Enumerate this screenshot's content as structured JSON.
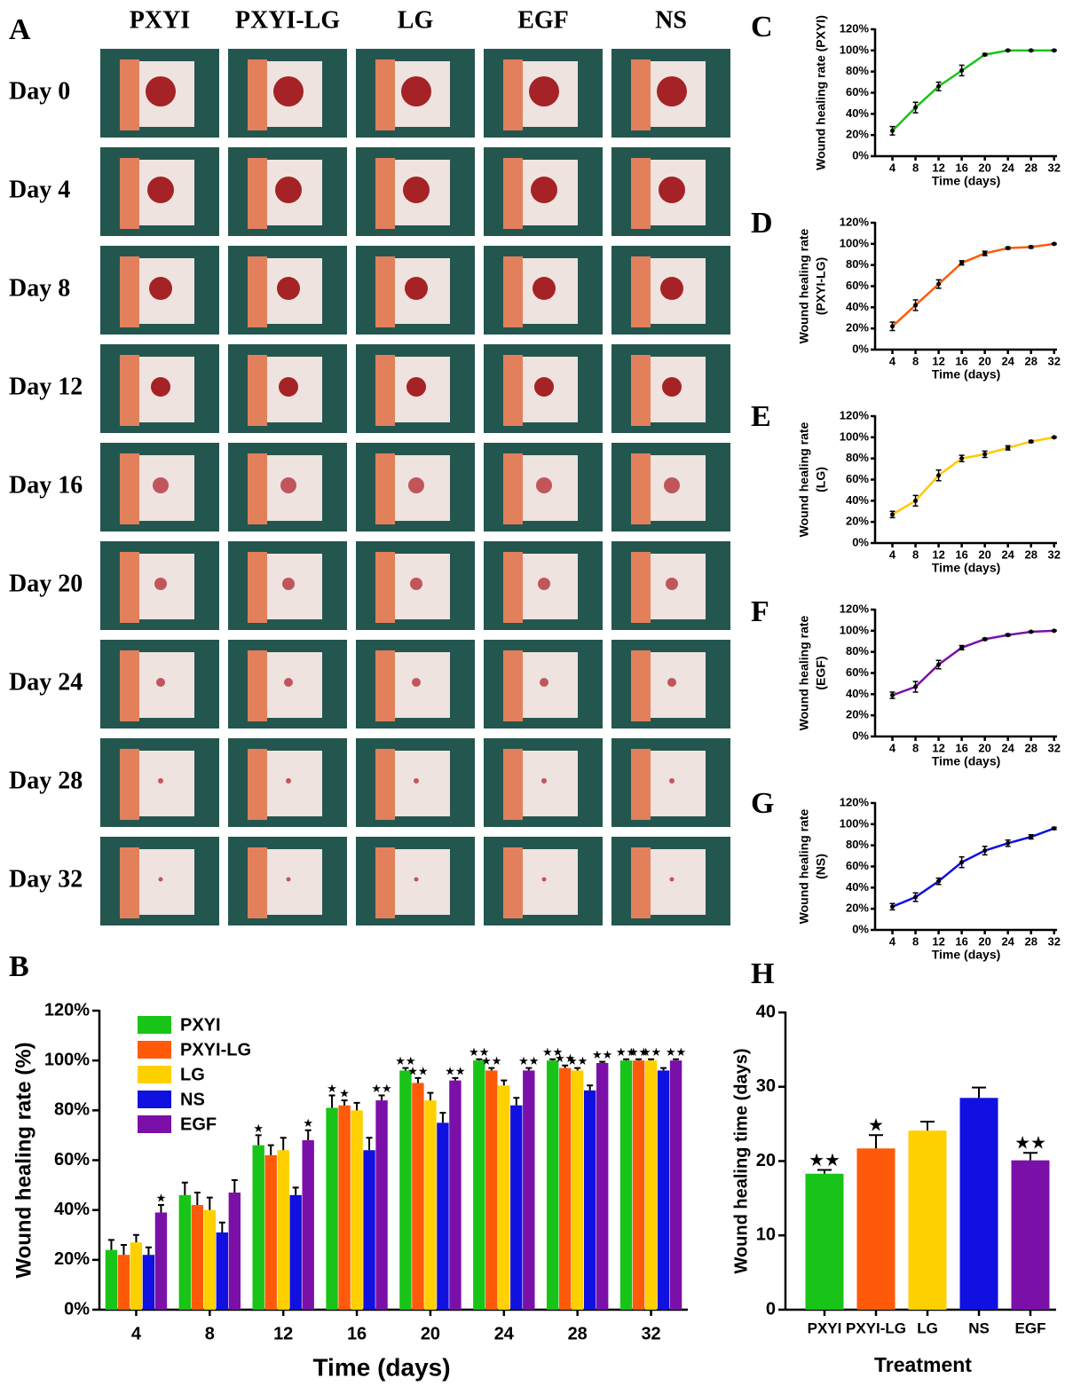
{
  "photo_grid": {
    "panel": "A",
    "columns": [
      "PXYI",
      "PXYI-LG",
      "LG",
      "EGF",
      "NS"
    ],
    "rows": [
      "Day 0",
      "Day 4",
      "Day 8",
      "Day 12",
      "Day 16",
      "Day 20",
      "Day 24",
      "Day 28",
      "Day 32"
    ]
  },
  "chart_data": [
    {
      "type": "bar",
      "panel": "B",
      "xlabel": "Time (days)",
      "ylabel": "Wound healing rate (%)",
      "categories": [
        "4",
        "8",
        "12",
        "16",
        "20",
        "24",
        "28",
        "32"
      ],
      "ylim": [
        0,
        120
      ],
      "yticks": [
        {
          "value": 0,
          "label": "0%"
        },
        {
          "value": 20,
          "label": "20%"
        },
        {
          "value": 40,
          "label": "40%"
        },
        {
          "value": 60,
          "label": "60%"
        },
        {
          "value": 80,
          "label": "80%"
        },
        {
          "value": 100,
          "label": "100%"
        },
        {
          "value": 120,
          "label": "120%"
        }
      ],
      "legend": "top-left",
      "series": [
        {
          "name": "PXYI",
          "color": "#18c418",
          "values": [
            24,
            46,
            66,
            81,
            96,
            100,
            100,
            100
          ],
          "errors": [
            4,
            5,
            4,
            5,
            1,
            0.5,
            0.5,
            0.5
          ],
          "significance": [
            null,
            null,
            "★",
            "★",
            "★★",
            "★★",
            "★★",
            "★★"
          ]
        },
        {
          "name": "PXYI-LG",
          "color": "#ff5a0a",
          "values": [
            22,
            42,
            62,
            82,
            91,
            96,
            97,
            100
          ],
          "errors": [
            4,
            5,
            4,
            2,
            2,
            1,
            1,
            0.5
          ],
          "significance": [
            null,
            null,
            null,
            "★",
            "★★",
            "★★",
            "★★",
            "★★"
          ]
        },
        {
          "name": "LG",
          "color": "#ffd000",
          "values": [
            27,
            40,
            64,
            80,
            84,
            90,
            96,
            100
          ],
          "errors": [
            3,
            5,
            5,
            3,
            3,
            2,
            1,
            0.5
          ],
          "significance": [
            null,
            null,
            null,
            null,
            null,
            null,
            "★★",
            "★★"
          ]
        },
        {
          "name": "NS",
          "color": "#1010e0",
          "values": [
            22,
            31,
            46,
            64,
            75,
            82,
            88,
            96
          ],
          "errors": [
            3,
            4,
            3,
            5,
            4,
            3,
            2,
            1
          ],
          "significance": [
            null,
            null,
            null,
            null,
            null,
            null,
            null,
            null
          ]
        },
        {
          "name": "EGF",
          "color": "#7a10a8",
          "values": [
            39,
            47,
            68,
            84,
            92,
            96,
            99,
            100
          ],
          "errors": [
            3,
            5,
            4,
            2,
            1,
            1,
            0.5,
            0.5
          ],
          "significance": [
            "★",
            null,
            "★",
            "★★",
            "★★",
            "★★",
            "★★",
            "★★"
          ]
        }
      ]
    },
    {
      "type": "line",
      "panel": "C",
      "xlabel": "Time (days)",
      "ylabel": [
        "Wound healing rate (PXYI)"
      ],
      "color": "#18c418",
      "x": [
        4,
        8,
        12,
        16,
        20,
        24,
        28,
        32
      ],
      "values": [
        24,
        46,
        66,
        81,
        96,
        100,
        100,
        100
      ],
      "errors": [
        4,
        5,
        4,
        5,
        1,
        0.5,
        0.5,
        0.5
      ],
      "xlim": [
        1,
        32.5
      ],
      "xticks": [
        4,
        8,
        12,
        16,
        20,
        24,
        28,
        32
      ],
      "ylim": [
        0,
        120
      ],
      "yticks": [
        {
          "value": 0,
          "label": "0%"
        },
        {
          "value": 20,
          "label": "20%"
        },
        {
          "value": 40,
          "label": "40%"
        },
        {
          "value": 60,
          "label": "60%"
        },
        {
          "value": 80,
          "label": "80%"
        },
        {
          "value": 100,
          "label": "100%"
        },
        {
          "value": 120,
          "label": "120%"
        }
      ]
    },
    {
      "type": "line",
      "panel": "D",
      "xlabel": "Time (days)",
      "ylabel": [
        "Wound healing rate",
        "(PXYI-LG)"
      ],
      "color": "#ff5a0a",
      "x": [
        4,
        8,
        12,
        16,
        20,
        24,
        28,
        32
      ],
      "values": [
        22,
        42,
        62,
        82,
        91,
        96,
        97,
        100
      ],
      "errors": [
        4,
        5,
        4,
        2,
        2,
        1,
        1,
        0.5
      ],
      "xlim": [
        1,
        32.5
      ],
      "xticks": [
        4,
        8,
        12,
        16,
        20,
        24,
        28,
        32
      ],
      "ylim": [
        0,
        120
      ],
      "yticks": [
        {
          "value": 0,
          "label": "0%"
        },
        {
          "value": 20,
          "label": "20%"
        },
        {
          "value": 40,
          "label": "40%"
        },
        {
          "value": 60,
          "label": "60%"
        },
        {
          "value": 80,
          "label": "80%"
        },
        {
          "value": 100,
          "label": "100%"
        },
        {
          "value": 120,
          "label": "120%"
        }
      ]
    },
    {
      "type": "line",
      "panel": "E",
      "xlabel": "Time (days)",
      "ylabel": [
        "Wound healing rate",
        "(LG)"
      ],
      "color": "#ffc800",
      "x": [
        4,
        8,
        12,
        16,
        20,
        24,
        28,
        32
      ],
      "values": [
        27,
        40,
        64,
        80,
        84,
        90,
        96,
        100
      ],
      "errors": [
        3,
        5,
        5,
        3,
        3,
        2,
        1,
        0.5
      ],
      "xlim": [
        1,
        32.5
      ],
      "xticks": [
        4,
        8,
        12,
        16,
        20,
        24,
        28,
        32
      ],
      "ylim": [
        0,
        120
      ],
      "yticks": [
        {
          "value": 0,
          "label": "0%"
        },
        {
          "value": 20,
          "label": "20%"
        },
        {
          "value": 40,
          "label": "40%"
        },
        {
          "value": 60,
          "label": "60%"
        },
        {
          "value": 80,
          "label": "80%"
        },
        {
          "value": 100,
          "label": "100%"
        },
        {
          "value": 120,
          "label": "120%"
        }
      ]
    },
    {
      "type": "line",
      "panel": "F",
      "xlabel": "Time (days)",
      "ylabel": [
        "Wound healing rate",
        "(EGF)"
      ],
      "color": "#7a10a8",
      "x": [
        4,
        8,
        12,
        16,
        20,
        24,
        28,
        32
      ],
      "values": [
        39,
        47,
        68,
        84,
        92,
        96,
        99,
        100
      ],
      "errors": [
        3,
        5,
        4,
        2,
        1,
        1,
        0.5,
        0.5
      ],
      "xlim": [
        1,
        32.5
      ],
      "xticks": [
        4,
        8,
        12,
        16,
        20,
        24,
        28,
        32
      ],
      "ylim": [
        0,
        120
      ],
      "yticks": [
        {
          "value": 0,
          "label": "0%"
        },
        {
          "value": 20,
          "label": "20%"
        },
        {
          "value": 40,
          "label": "40%"
        },
        {
          "value": 60,
          "label": "60%"
        },
        {
          "value": 80,
          "label": "80%"
        },
        {
          "value": 100,
          "label": "100%"
        },
        {
          "value": 120,
          "label": "120%"
        }
      ]
    },
    {
      "type": "line",
      "panel": "G",
      "xlabel": "Time (days)",
      "ylabel": [
        "Wound healing rate",
        "(NS)"
      ],
      "color": "#1010e0",
      "x": [
        4,
        8,
        12,
        16,
        20,
        24,
        28,
        32
      ],
      "values": [
        22,
        31,
        46,
        64,
        75,
        82,
        88,
        96
      ],
      "errors": [
        3,
        4,
        3,
        5,
        4,
        3,
        2,
        1
      ],
      "xlim": [
        1,
        32.5
      ],
      "xticks": [
        4,
        8,
        12,
        16,
        20,
        24,
        28,
        32
      ],
      "ylim": [
        0,
        120
      ],
      "yticks": [
        {
          "value": 0,
          "label": "0%"
        },
        {
          "value": 20,
          "label": "20%"
        },
        {
          "value": 40,
          "label": "40%"
        },
        {
          "value": 60,
          "label": "60%"
        },
        {
          "value": 80,
          "label": "80%"
        },
        {
          "value": 100,
          "label": "100%"
        },
        {
          "value": 120,
          "label": "120%"
        }
      ]
    },
    {
      "type": "bar",
      "panel": "H",
      "xlabel": "Treatment",
      "ylabel": "Wound healing time (days)",
      "categories": [
        "PXYI",
        "PXYI-LG",
        "LG",
        "NS",
        "EGF"
      ],
      "values": [
        18.3,
        21.7,
        24.1,
        28.5,
        20.1
      ],
      "errors": [
        0.5,
        1.8,
        1.2,
        1.4,
        1.0
      ],
      "colors": [
        "#18c418",
        "#ff5a0a",
        "#ffd000",
        "#1010e0",
        "#7a10a8"
      ],
      "significance": [
        "★★",
        "★",
        null,
        null,
        "★★"
      ],
      "ylim": [
        0,
        40
      ],
      "yticks": [
        0,
        10,
        20,
        30,
        40
      ]
    }
  ]
}
